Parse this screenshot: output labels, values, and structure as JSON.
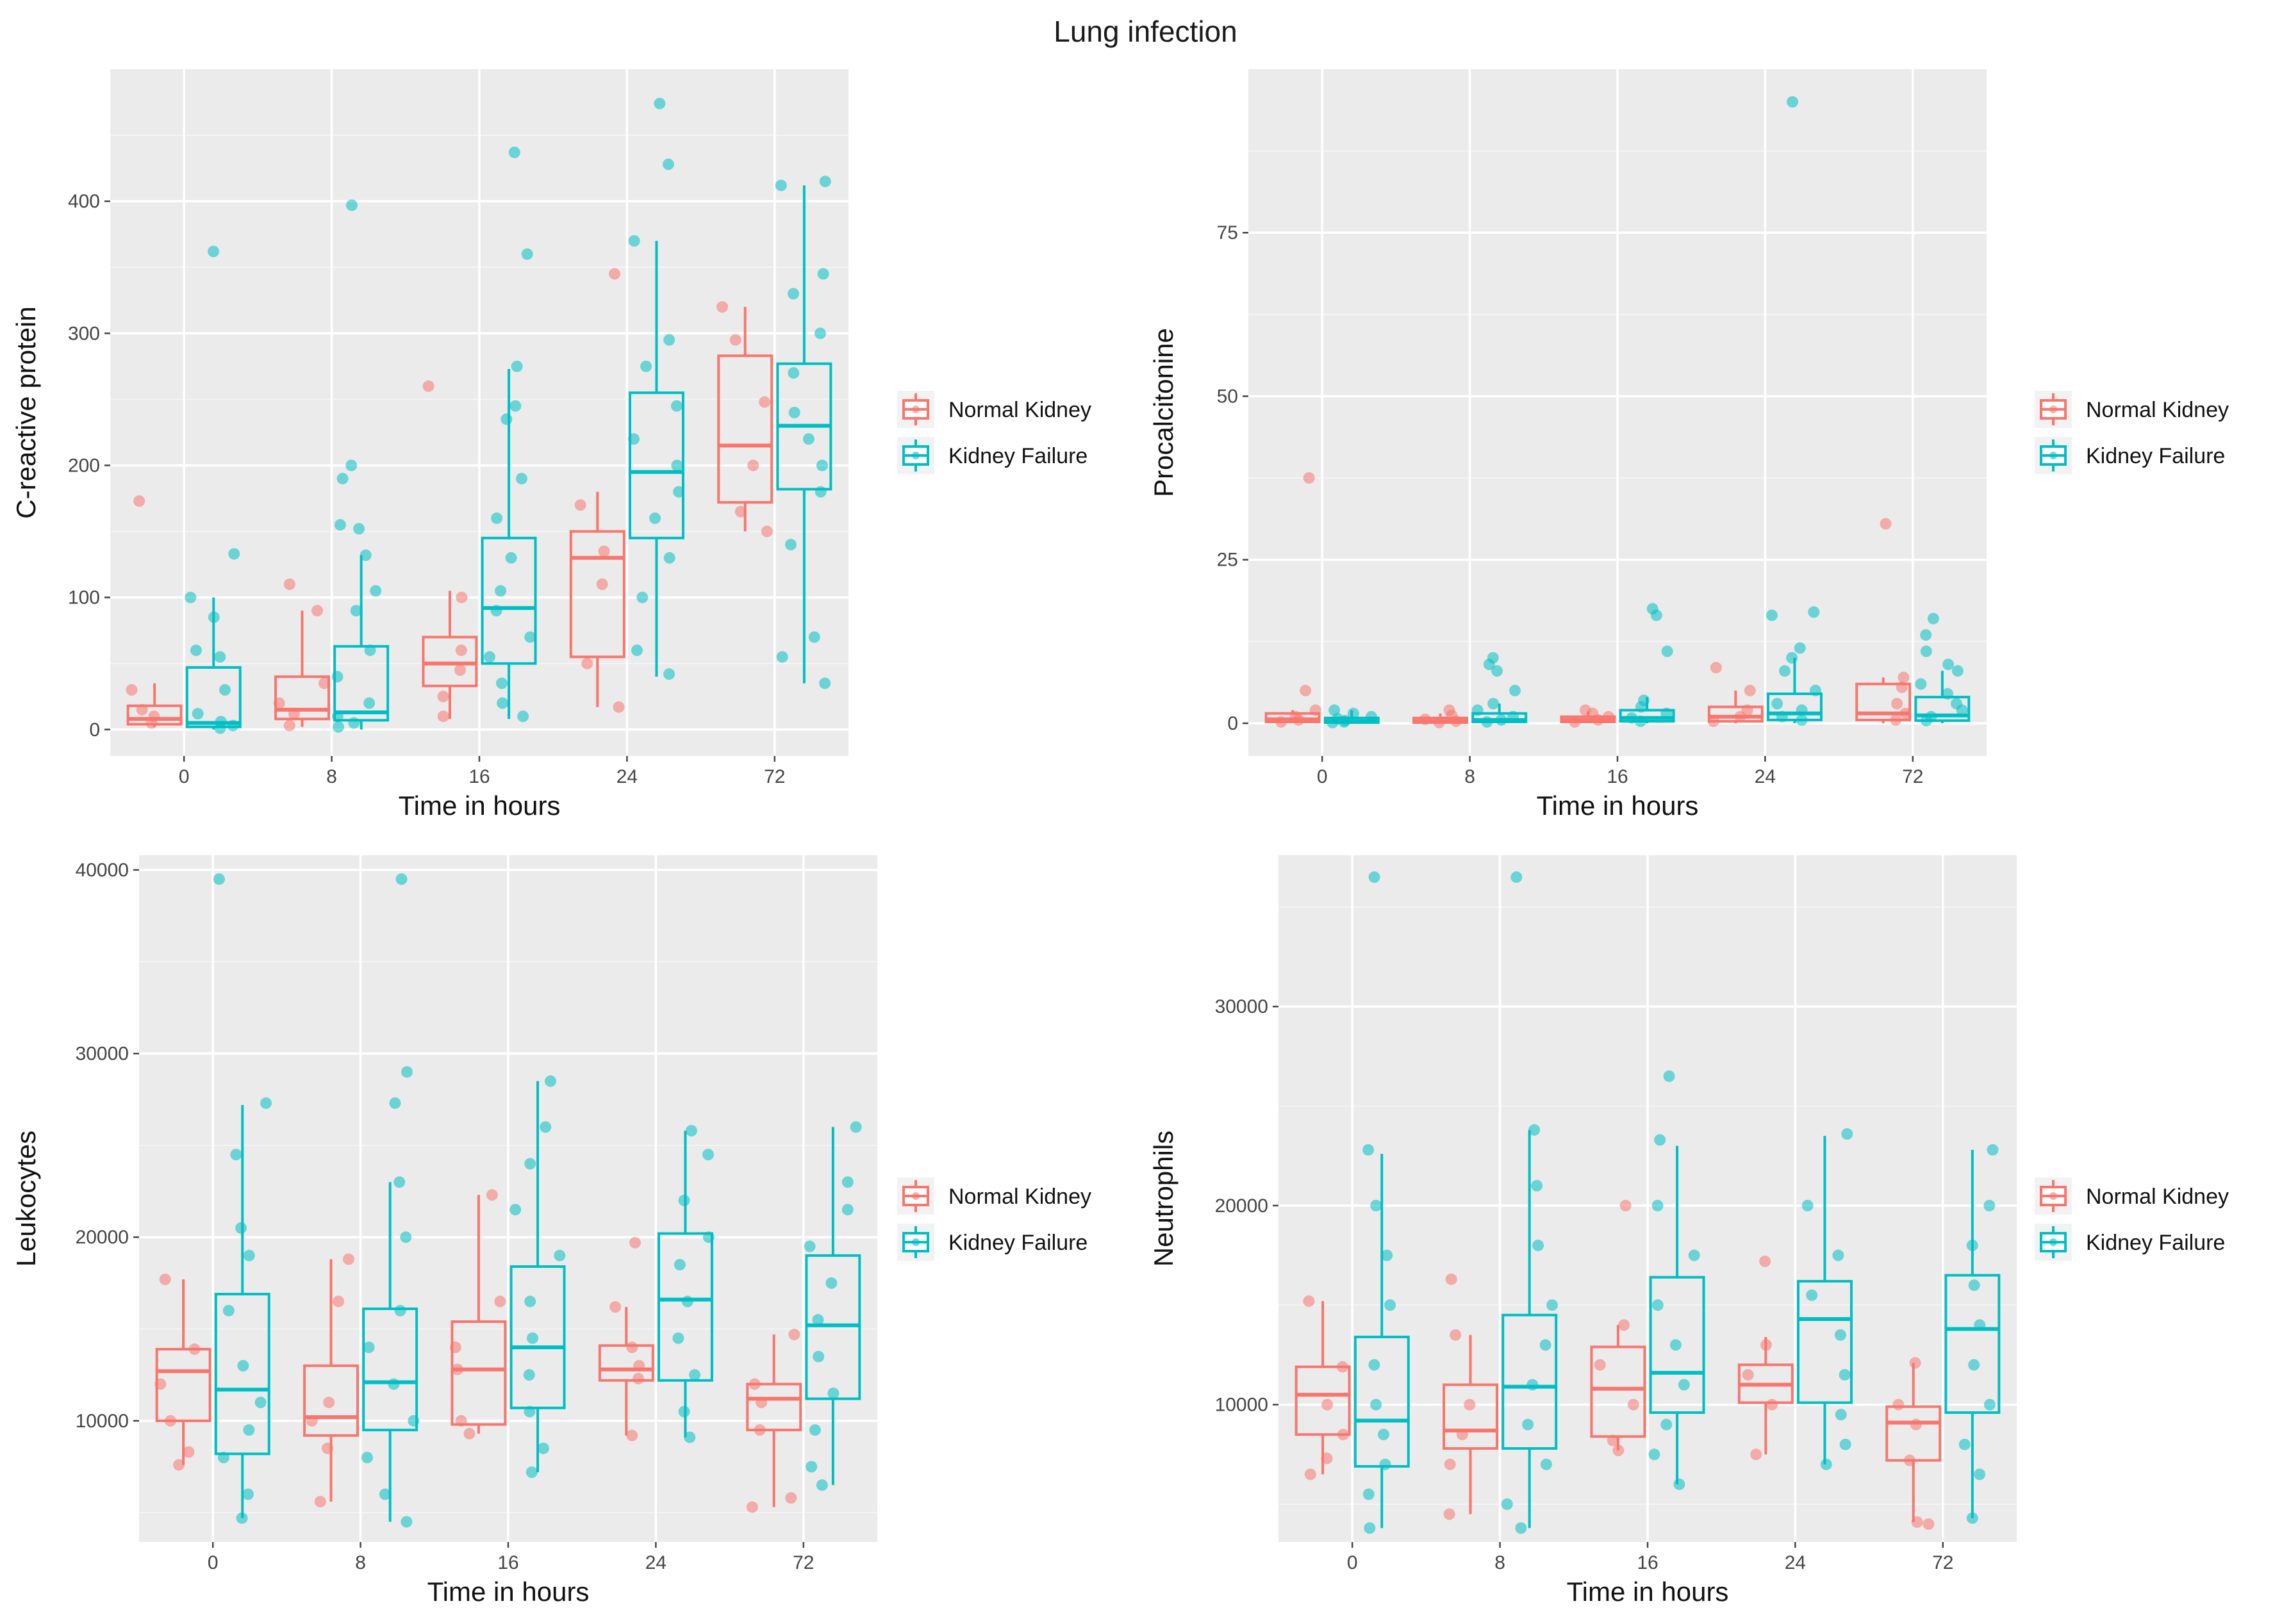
{
  "figure_title": "Lung infection",
  "colors": {
    "normal": "#F8766D",
    "failure": "#00BFC4"
  },
  "chart_data": [
    {
      "type": "box",
      "ylabel": "C-reactive protein",
      "xlabel": "Time in hours",
      "categories": [
        "0",
        "8",
        "16",
        "24",
        "72"
      ],
      "ylim": [
        -20,
        500
      ],
      "yticks": [
        0,
        100,
        200,
        300,
        400
      ],
      "legend": [
        "Normal Kidney",
        "Kidney Failure"
      ],
      "legend_position": "right",
      "series": [
        {
          "name": "Normal Kidney",
          "boxes": [
            {
              "whislo": 2,
              "q1": 4,
              "med": 8,
              "q3": 18,
              "whishi": 35,
              "points": [
                5,
                10,
                15,
                30,
                173
              ]
            },
            {
              "whislo": 2,
              "q1": 8,
              "med": 15,
              "q3": 40,
              "whishi": 90,
              "points": [
                3,
                12,
                20,
                35,
                90,
                110
              ]
            },
            {
              "whislo": 8,
              "q1": 33,
              "med": 50,
              "q3": 70,
              "whishi": 105,
              "points": [
                10,
                25,
                45,
                60,
                100,
                260
              ]
            },
            {
              "whislo": 17,
              "q1": 55,
              "med": 130,
              "q3": 150,
              "whishi": 180,
              "points": [
                17,
                50,
                110,
                135,
                170,
                345
              ]
            },
            {
              "whislo": 150,
              "q1": 172,
              "med": 215,
              "q3": 283,
              "whishi": 320,
              "points": [
                150,
                165,
                200,
                248,
                295,
                320
              ]
            }
          ]
        },
        {
          "name": "Kidney Failure",
          "boxes": [
            {
              "whislo": 0,
              "q1": 2,
              "med": 5,
              "q3": 47,
              "whishi": 100,
              "points": [
                1,
                3,
                6,
                12,
                30,
                55,
                60,
                85,
                100,
                133,
                362
              ]
            },
            {
              "whislo": 0,
              "q1": 7,
              "med": 13,
              "q3": 63,
              "whishi": 132,
              "points": [
                2,
                5,
                10,
                20,
                40,
                60,
                90,
                105,
                132,
                152,
                155,
                190,
                200,
                397
              ]
            },
            {
              "whislo": 8,
              "q1": 50,
              "med": 92,
              "q3": 145,
              "whishi": 273,
              "points": [
                10,
                20,
                35,
                55,
                70,
                90,
                105,
                130,
                160,
                190,
                235,
                245,
                275,
                360,
                437
              ]
            },
            {
              "whislo": 40,
              "q1": 145,
              "med": 195,
              "q3": 255,
              "whishi": 370,
              "points": [
                42,
                60,
                100,
                130,
                160,
                180,
                200,
                220,
                245,
                275,
                295,
                370,
                428,
                474
              ]
            },
            {
              "whislo": 35,
              "q1": 182,
              "med": 230,
              "q3": 277,
              "whishi": 412,
              "points": [
                35,
                55,
                70,
                140,
                180,
                200,
                220,
                240,
                270,
                300,
                330,
                345,
                412,
                415
              ]
            }
          ]
        }
      ]
    },
    {
      "type": "box",
      "ylabel": "Procalcitonine",
      "xlabel": "Time in hours",
      "categories": [
        "0",
        "8",
        "16",
        "24",
        "72"
      ],
      "ylim": [
        -5,
        100
      ],
      "yticks": [
        0,
        25,
        50,
        75
      ],
      "legend": [
        "Normal Kidney",
        "Kidney Failure"
      ],
      "legend_position": "right",
      "series": [
        {
          "name": "Normal Kidney",
          "boxes": [
            {
              "whislo": 0,
              "q1": 0.2,
              "med": 0.6,
              "q3": 1.5,
              "whishi": 2,
              "points": [
                0.2,
                0.5,
                1,
                2,
                5,
                37.5
              ]
            },
            {
              "whislo": 0,
              "q1": 0.1,
              "med": 0.3,
              "q3": 0.8,
              "whishi": 1.5,
              "points": [
                0.1,
                0.3,
                0.6,
                1.2,
                2
              ]
            },
            {
              "whislo": 0,
              "q1": 0.2,
              "med": 0.5,
              "q3": 1,
              "whishi": 1.8,
              "points": [
                0.2,
                0.5,
                1,
                1.5,
                2
              ]
            },
            {
              "whislo": 0,
              "q1": 0.3,
              "med": 1,
              "q3": 2.5,
              "whishi": 5,
              "points": [
                0.3,
                1,
                2,
                5,
                8.5
              ]
            },
            {
              "whislo": 0,
              "q1": 0.5,
              "med": 1.5,
              "q3": 6,
              "whishi": 7,
              "points": [
                0.5,
                1.5,
                3,
                5.5,
                7,
                30.5
              ]
            }
          ]
        },
        {
          "name": "Kidney Failure",
          "boxes": [
            {
              "whislo": 0,
              "q1": 0.1,
              "med": 0.3,
              "q3": 0.8,
              "whishi": 2,
              "points": [
                0.1,
                0.2,
                0.4,
                0.7,
                1,
                1.5,
                2
              ]
            },
            {
              "whislo": 0,
              "q1": 0.2,
              "med": 0.5,
              "q3": 1.5,
              "whishi": 3,
              "points": [
                0.2,
                0.5,
                1,
                2,
                3,
                5,
                8,
                9,
                10
              ]
            },
            {
              "whislo": 0,
              "q1": 0.3,
              "med": 0.8,
              "q3": 2,
              "whishi": 4,
              "points": [
                0.3,
                0.8,
                1.5,
                2.5,
                3.5,
                11,
                16.5,
                17.5
              ]
            },
            {
              "whislo": 0,
              "q1": 0.5,
              "med": 1.5,
              "q3": 4.5,
              "whishi": 10,
              "points": [
                0.5,
                1,
                2,
                3,
                5,
                8,
                10,
                11.5,
                16.5,
                17,
                95
              ]
            },
            {
              "whislo": 0,
              "q1": 0.4,
              "med": 1.2,
              "q3": 4,
              "whishi": 8,
              "points": [
                0.4,
                1,
                2,
                3,
                4.5,
                6,
                8,
                9,
                11,
                13.5,
                16
              ]
            }
          ]
        }
      ]
    },
    {
      "type": "box",
      "ylabel": "Leukocytes",
      "xlabel": "Time in hours",
      "categories": [
        "0",
        "8",
        "16",
        "24",
        "72"
      ],
      "ylim": [
        3400,
        40800
      ],
      "yticks": [
        10000,
        20000,
        30000,
        40000
      ],
      "legend": [
        "Normal Kidney",
        "Kidney Failure"
      ],
      "legend_position": "right",
      "series": [
        {
          "name": "Normal Kidney",
          "boxes": [
            {
              "whislo": 7600,
              "q1": 10000,
              "med": 12700,
              "q3": 13900,
              "whishi": 17700,
              "points": [
                7600,
                8300,
                10000,
                12000,
                13900,
                17700
              ]
            },
            {
              "whislo": 5600,
              "q1": 9200,
              "med": 10200,
              "q3": 13000,
              "whishi": 18800,
              "points": [
                5600,
                8500,
                10000,
                11000,
                16500,
                18800
              ]
            },
            {
              "whislo": 9300,
              "q1": 9800,
              "med": 12800,
              "q3": 15400,
              "whishi": 22300,
              "points": [
                9300,
                10000,
                12800,
                14000,
                16500,
                22300
              ]
            },
            {
              "whislo": 9200,
              "q1": 12200,
              "med": 12800,
              "q3": 14100,
              "whishi": 16200,
              "points": [
                9200,
                12300,
                13000,
                14000,
                16200,
                19700
              ]
            },
            {
              "whislo": 5300,
              "q1": 9500,
              "med": 11200,
              "q3": 12000,
              "whishi": 14700,
              "points": [
                5300,
                5800,
                9500,
                11000,
                12000,
                14700
              ]
            }
          ]
        },
        {
          "name": "Kidney Failure",
          "boxes": [
            {
              "whislo": 4700,
              "q1": 8200,
              "med": 11700,
              "q3": 16900,
              "whishi": 27200,
              "points": [
                4700,
                6000,
                8000,
                9500,
                11000,
                13000,
                16000,
                19000,
                20500,
                24500,
                27300,
                39500
              ]
            },
            {
              "whislo": 4500,
              "q1": 9500,
              "med": 12100,
              "q3": 16100,
              "whishi": 23000,
              "points": [
                4500,
                6000,
                8000,
                10000,
                12000,
                14000,
                16000,
                20000,
                23000,
                27300,
                29000,
                39500
              ]
            },
            {
              "whislo": 7200,
              "q1": 10700,
              "med": 14000,
              "q3": 18400,
              "whishi": 28500,
              "points": [
                7200,
                8500,
                10500,
                12500,
                14500,
                16500,
                19000,
                21500,
                24000,
                26000,
                28500
              ]
            },
            {
              "whislo": 9100,
              "q1": 12200,
              "med": 16600,
              "q3": 20200,
              "whishi": 25800,
              "points": [
                9100,
                10500,
                12500,
                14500,
                16500,
                18500,
                20000,
                22000,
                24500,
                25800
              ]
            },
            {
              "whislo": 6500,
              "q1": 11200,
              "med": 15200,
              "q3": 19000,
              "whishi": 26000,
              "points": [
                6500,
                7500,
                9500,
                11500,
                13500,
                15500,
                17500,
                19500,
                21500,
                23000,
                26000
              ]
            }
          ]
        }
      ]
    },
    {
      "type": "box",
      "ylabel": "Neutrophils",
      "xlabel": "Time in hours",
      "categories": [
        "0",
        "8",
        "16",
        "24",
        "72"
      ],
      "ylim": [
        3100,
        37600
      ],
      "yticks": [
        10000,
        20000,
        30000
      ],
      "legend": [
        "Normal Kidney",
        "Kidney Failure"
      ],
      "legend_position": "right",
      "series": [
        {
          "name": "Normal Kidney",
          "boxes": [
            {
              "whislo": 6500,
              "q1": 8500,
              "med": 10500,
              "q3": 11900,
              "whishi": 15200,
              "points": [
                6500,
                7300,
                8500,
                10000,
                11900,
                15200
              ]
            },
            {
              "whislo": 4500,
              "q1": 7800,
              "med": 8700,
              "q3": 11000,
              "whishi": 13500,
              "points": [
                4500,
                7000,
                8500,
                10000,
                13500,
                16300
              ]
            },
            {
              "whislo": 7700,
              "q1": 8400,
              "med": 10800,
              "q3": 12900,
              "whishi": 14000,
              "points": [
                7700,
                8200,
                10000,
                12000,
                14000,
                20000
              ]
            },
            {
              "whislo": 7500,
              "q1": 10100,
              "med": 11000,
              "q3": 12000,
              "whishi": 13400,
              "points": [
                7500,
                10000,
                11500,
                13000,
                17200
              ]
            },
            {
              "whislo": 4100,
              "q1": 7200,
              "med": 9100,
              "q3": 9900,
              "whishi": 12100,
              "points": [
                4000,
                4100,
                7200,
                9000,
                10000,
                12100
              ]
            }
          ]
        },
        {
          "name": "Kidney Failure",
          "boxes": [
            {
              "whislo": 3800,
              "q1": 6900,
              "med": 9200,
              "q3": 13400,
              "whishi": 22600,
              "points": [
                3800,
                5500,
                7000,
                8500,
                10000,
                12000,
                15000,
                17500,
                20000,
                22800,
                36500
              ]
            },
            {
              "whislo": 3800,
              "q1": 7800,
              "med": 10900,
              "q3": 14500,
              "whishi": 23800,
              "points": [
                3800,
                5000,
                7000,
                9000,
                11000,
                13000,
                15000,
                18000,
                21000,
                23800,
                36500
              ]
            },
            {
              "whislo": 6000,
              "q1": 9600,
              "med": 11600,
              "q3": 16400,
              "whishi": 23000,
              "points": [
                6000,
                7500,
                9000,
                11000,
                13000,
                15000,
                17500,
                20000,
                23300,
                26500
              ]
            },
            {
              "whislo": 7000,
              "q1": 10100,
              "med": 14300,
              "q3": 16200,
              "whishi": 23500,
              "points": [
                7000,
                8000,
                9500,
                11500,
                13500,
                15500,
                17500,
                20000,
                23600
              ]
            },
            {
              "whislo": 4300,
              "q1": 9600,
              "med": 13800,
              "q3": 16500,
              "whishi": 22800,
              "points": [
                4300,
                6500,
                8000,
                10000,
                12000,
                14000,
                16000,
                18000,
                20000,
                22800
              ]
            }
          ]
        }
      ]
    }
  ]
}
